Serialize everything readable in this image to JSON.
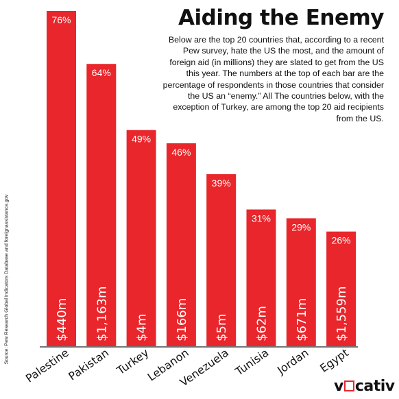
{
  "title": "Aiding the Enemy",
  "description": "Below are the top 20 countries that, according to a recent Pew survey, hate the US the most, and the amount of foreign aid (in millions) they are slated to get from the US this year. The numbers at the top of each bar are the percentage of respondents in those countries that consider the US an “enemy.” All The countries below, with the exception of Turkey, are among the top 20 aid recipients from the US.",
  "source": "Source: Pew Research Global Indicators Database and foreignassistance.gov",
  "logo": {
    "prefix": "v",
    "suffix": "cativ",
    "accent": "#e8262b"
  },
  "colors": {
    "bar": "#e8262b",
    "bar_text": "#ffffff"
  },
  "chart_data": {
    "type": "bar",
    "categories": [
      "Palestine",
      "Pakistan",
      "Turkey",
      "Lebanon",
      "Venezuela",
      "Tunisia",
      "Jordan",
      "Egypt"
    ],
    "series": [
      {
        "values": [
          76,
          64,
          49,
          46,
          39,
          31,
          29,
          26
        ]
      }
    ],
    "data_labels": [
      "76%",
      "64%",
      "49%",
      "46%",
      "39%",
      "31%",
      "29%",
      "26%"
    ],
    "aid_labels": [
      "$440m",
      "$1,163m",
      "$4m",
      "$166m",
      "$5m",
      "$62m",
      "$671m",
      "$1,559m"
    ],
    "aid_millions": [
      440,
      1163,
      4,
      166,
      5,
      62,
      671,
      1559
    ],
    "ylim": [
      0,
      80
    ],
    "grid": false,
    "legend": "none"
  }
}
